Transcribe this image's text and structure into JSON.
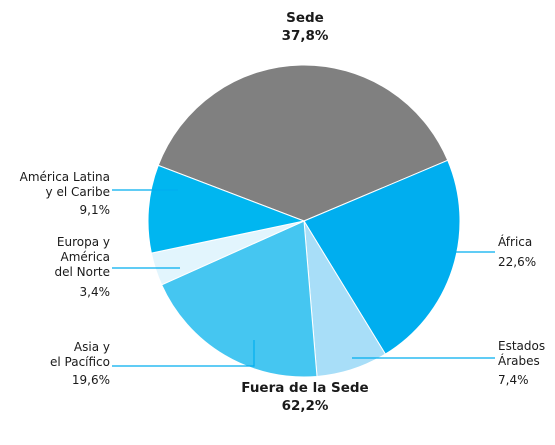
{
  "chart_data": {
    "type": "pie",
    "categories": [
      "Sede",
      "África",
      "Estados\nÁrabes",
      "Asia y\nel Pacífico",
      "Europa y\nAmérica\ndel Norte",
      "América Latina\ny el Caribe"
    ],
    "values": [
      37.8,
      22.6,
      7.4,
      19.6,
      3.4,
      9.1
    ],
    "value_labels": [
      "37,8%",
      "22,6%",
      "7,4%",
      "19,6%",
      "3,4%",
      "9,1%"
    ],
    "colors": [
      "#808080",
      "#00aeef",
      "#a8def8",
      "#45c6f1",
      "#e2f5fd",
      "#00b6f0"
    ],
    "annotations": [
      {
        "text": "Fuera de la Sede",
        "label": "62,2%"
      }
    ]
  }
}
